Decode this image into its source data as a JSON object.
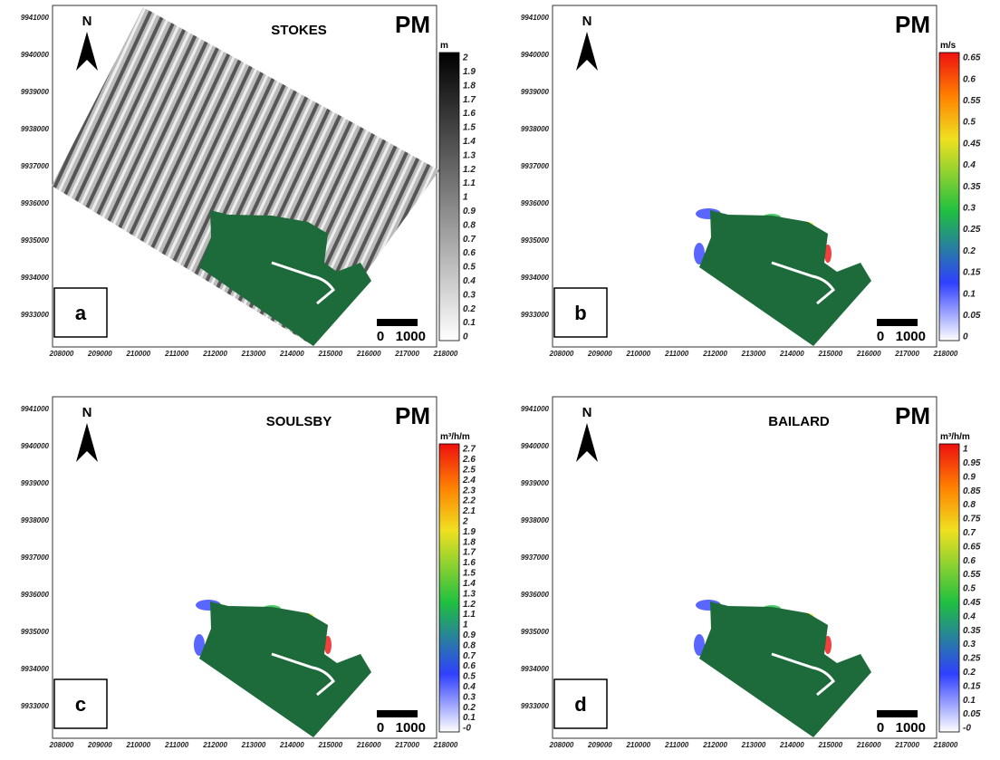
{
  "x_ticks": [
    "208000",
    "209000",
    "210000",
    "211000",
    "212000",
    "213000",
    "214000",
    "215000",
    "216000",
    "217000",
    "218000"
  ],
  "y_ticks": [
    "9941000",
    "9940000",
    "9939000",
    "9938000",
    "9937000",
    "9936000",
    "9935000",
    "9934000",
    "9933000"
  ],
  "panels": [
    {
      "letter": "a",
      "title": "STOKES",
      "tag": "PM",
      "north": "N",
      "unit": "m",
      "scale_bar": [
        "0",
        "1000"
      ],
      "colorbar": [
        "2",
        "1.9",
        "1.8",
        "1.7",
        "1.6",
        "1.5",
        "1.4",
        "1.3",
        "1.2",
        "1.1",
        "1",
        "0.9",
        "0.8",
        "0.7",
        "0.6",
        "0.5",
        "0.4",
        "0.3",
        "0.2",
        "0.1",
        "0"
      ]
    },
    {
      "letter": "b",
      "tag": "PM",
      "north": "N",
      "unit": "m/s",
      "scale_bar": [
        "0",
        "1000"
      ],
      "colorbar": [
        "0.65",
        "0.6",
        "0.55",
        "0.5",
        "0.45",
        "0.4",
        "0.35",
        "0.3",
        "0.25",
        "0.2",
        "0.15",
        "0.1",
        "0.05",
        "0"
      ]
    },
    {
      "letter": "c",
      "title": "SOULSBY",
      "tag": "PM",
      "north": "N",
      "unit": "m³/h/m",
      "scale_bar": [
        "0",
        "1000"
      ],
      "colorbar": [
        "2.7",
        "2.6",
        "2.5",
        "2.4",
        "2.3",
        "2.2",
        "2.1",
        "2",
        "1.9",
        "1.8",
        "1.7",
        "1.6",
        "1.5",
        "1.4",
        "1.3",
        "1.2",
        "1.1",
        "1",
        "0.9",
        "0.8",
        "0.7",
        "0.6",
        "0.5",
        "0.4",
        "0.3",
        "0.2",
        "0.1",
        "-0"
      ]
    },
    {
      "letter": "d",
      "title": "BAILARD",
      "tag": "PM",
      "north": "N",
      "unit": "m³/h/m",
      "scale_bar": [
        "0",
        "1000"
      ],
      "colorbar": [
        "1",
        "0.95",
        "0.9",
        "0.85",
        "0.8",
        "0.75",
        "0.7",
        "0.65",
        "0.6",
        "0.55",
        "0.5",
        "0.45",
        "0.4",
        "0.35",
        "0.3",
        "0.25",
        "0.2",
        "0.15",
        "0.1",
        "0.05",
        "-0"
      ]
    }
  ]
}
